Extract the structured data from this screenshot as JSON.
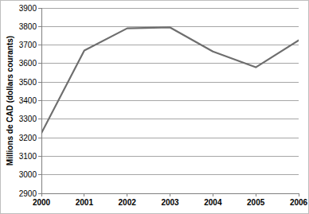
{
  "chart_data": {
    "type": "line",
    "y_label": "Millions de CAD (dollars courants)",
    "categories": [
      "2000",
      "2001",
      "2002",
      "2003",
      "2004",
      "2005",
      "2006"
    ],
    "values": [
      3225,
      3670,
      3790,
      3795,
      3665,
      3580,
      3725
    ],
    "color": "#6e6e6e",
    "ylim": [
      2900,
      3900
    ],
    "yticks": [
      2900,
      3000,
      3100,
      3200,
      3300,
      3400,
      3500,
      3600,
      3700,
      3800,
      3900
    ],
    "grid": true
  }
}
